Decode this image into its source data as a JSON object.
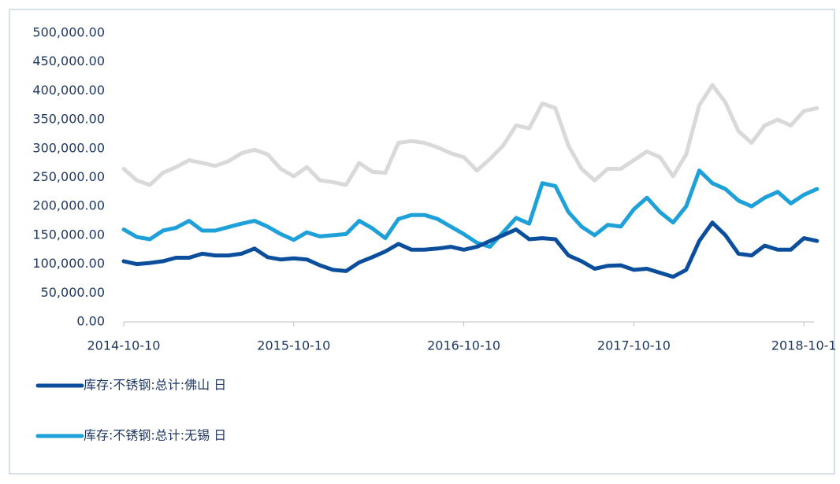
{
  "chart_data": {
    "type": "line",
    "categories": [
      "2014-10-10",
      null,
      null,
      null,
      null,
      null,
      null,
      null,
      null,
      null,
      null,
      null,
      null,
      "2015-10-10",
      null,
      null,
      null,
      null,
      null,
      null,
      null,
      null,
      null,
      null,
      null,
      null,
      "2016-10-10",
      null,
      null,
      null,
      null,
      null,
      null,
      null,
      null,
      null,
      null,
      null,
      null,
      "2017-10-10",
      null,
      null,
      null,
      null,
      null,
      null,
      null,
      null,
      null,
      null,
      null,
      null,
      "2018-10-1",
      null
    ],
    "series": [
      {
        "name": "库存:不锈钢:总计:佛山 日",
        "color": "#0b4f9c",
        "values": [
          105000,
          100000,
          102000,
          105000,
          111000,
          111000,
          118000,
          115000,
          115000,
          118000,
          127000,
          112000,
          108000,
          110000,
          108000,
          98000,
          90000,
          88000,
          103000,
          112000,
          122000,
          135000,
          125000,
          125000,
          127000,
          130000,
          125000,
          130000,
          140000,
          150000,
          160000,
          143000,
          145000,
          143000,
          115000,
          105000,
          92000,
          97000,
          98000,
          90000,
          92000,
          85000,
          78000,
          90000,
          140000,
          172000,
          150000,
          118000,
          115000,
          132000,
          125000,
          125000,
          145000,
          140000
        ]
      },
      {
        "name": "库存:不锈钢:总计:无锡 日",
        "color": "#1ea0d8",
        "values": [
          160000,
          147000,
          143000,
          158000,
          163000,
          175000,
          158000,
          158000,
          164000,
          170000,
          175000,
          165000,
          152000,
          142000,
          155000,
          148000,
          150000,
          152000,
          175000,
          162000,
          145000,
          178000,
          185000,
          185000,
          178000,
          165000,
          152000,
          137000,
          130000,
          155000,
          180000,
          170000,
          240000,
          235000,
          190000,
          165000,
          150000,
          168000,
          165000,
          195000,
          215000,
          190000,
          172000,
          200000,
          262000,
          240000,
          230000,
          210000,
          200000,
          215000,
          225000,
          205000,
          220000,
          230000
        ]
      },
      {
        "color": "#d9d9d9",
        "values": [
          265000,
          245000,
          237000,
          258000,
          268000,
          280000,
          275000,
          270000,
          278000,
          292000,
          298000,
          290000,
          265000,
          252000,
          268000,
          245000,
          242000,
          237000,
          275000,
          260000,
          258000,
          310000,
          313000,
          310000,
          302000,
          292000,
          285000,
          262000,
          282000,
          305000,
          340000,
          335000,
          378000,
          370000,
          305000,
          265000,
          245000,
          265000,
          265000,
          280000,
          295000,
          285000,
          252000,
          290000,
          375000,
          410000,
          380000,
          330000,
          310000,
          340000,
          350000,
          340000,
          365000,
          370000
        ]
      }
    ],
    "ylim": [
      0,
      500000
    ],
    "yticks": [
      {
        "value": 0,
        "label": "0.00"
      },
      {
        "value": 50000,
        "label": "50,000.00"
      },
      {
        "value": 100000,
        "label": "100,000.00"
      },
      {
        "value": 150000,
        "label": "150,000.00"
      },
      {
        "value": 200000,
        "label": "200,000.00"
      },
      {
        "value": 250000,
        "label": "250,000.00"
      },
      {
        "value": 300000,
        "label": "300,000.00"
      },
      {
        "value": 350000,
        "label": "350,000.00"
      },
      {
        "value": 400000,
        "label": "400,000.00"
      },
      {
        "value": 450000,
        "label": "450,000.00"
      },
      {
        "value": 500000,
        "label": "500,000.00"
      }
    ],
    "grid": false
  }
}
